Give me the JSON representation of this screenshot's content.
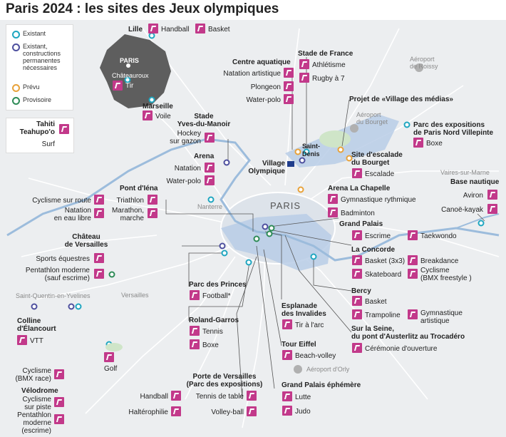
{
  "title": "Paris 2024 : les sites des Jeux olympiques",
  "colors": {
    "existant": "#1fa6c0",
    "constructions": "#4d4f9e",
    "prevu": "#e8a23a",
    "provisoire": "#2e8b57",
    "icon": "#c2398a",
    "zone": "#b8cde6"
  },
  "legend": {
    "items": [
      {
        "label": "Existant",
        "color": "#1fa6c0"
      },
      {
        "label": "Existant,\nconstructions\npermanentes\nnécessaires",
        "color": "#4d4f9e"
      },
      {
        "label": "Prévu",
        "color": "#e8a23a"
      },
      {
        "label": "Provisoire",
        "color": "#2e8b57"
      }
    ]
  },
  "inset": {
    "paris": "PARIS",
    "chateauroux": "Châteauroux",
    "tir": "Tir"
  },
  "tahiti": {
    "name": "Tahiti\nTeahupo'o",
    "sport": "Surf"
  },
  "places": {
    "lille": "Lille",
    "marseille": "Marseille",
    "nanterre": "Nanterre",
    "versailles": "Versailles",
    "sqy": "Saint-Quentin-en-Yvelines",
    "paris": "PARIS",
    "saint_denis": "Saint-\nDenis",
    "aeroport_roissy": "Aéroport\nde Roissy",
    "aeroport_bourget": "Aéroport\ndu Bourget",
    "aeroport_orly": "Aéroport d'Orly",
    "vaires": "Vaires-sur-Marne"
  },
  "labels": {
    "handball_lille": "Handball",
    "basket_lille": "Basket",
    "voile": "Voile",
    "centre_aquatique": "Centre aquatique",
    "natation_artistique": "Natation artistique",
    "plongeon": "Plongeon",
    "water_polo_ca": "Water-polo",
    "stade_de_france": "Stade de France",
    "athletisme": "Athlétisme",
    "rugby": "Rugby à 7",
    "stade_ymg": "Stade\nYves-du-Manoir",
    "hockey": "Hockey\nsur gazon",
    "arena": "Arena",
    "natation": "Natation",
    "water_polo_arena": "Water-polo",
    "village_olympique": "Village\nOlympique",
    "projet_village_medias": "Projet de «Village des médias»",
    "parc_expo_villepinte": "Parc des expositions\nde Paris Nord Villepinte",
    "boxe_villepinte": "Boxe",
    "escalade_site": "Site d'escalade\ndu Bourget",
    "escalade": "Escalade",
    "arena_chapelle": "Arena La Chapelle",
    "gym_rythmique": "Gymnastique rythmique",
    "badminton": "Badminton",
    "base_nautique": "Base nautique",
    "aviron": "Aviron",
    "canoe": "Canoë-kayak",
    "pont_iena": "Pont d'Iéna",
    "triathlon": "Triathlon",
    "marathon": "Marathon,\nmarche",
    "cyclisme_route": "Cyclisme sur route",
    "natation_eau_libre": "Natation\nen eau libre",
    "grand_palais": "Grand Palais",
    "escrime": "Escrime",
    "taekwondo": "Taekwondo",
    "concorde": "La Concorde",
    "basket3x3": "Basket (3x3)",
    "breakdance": "Breakdance",
    "skateboard": "Skateboard",
    "bmx_freestyle": "Cyclisme\n(BMX freestyle )",
    "chateau_versailles": "Château\nde Versailles",
    "equestres": "Sports équestres",
    "pentathlon_v": "Pentathlon moderne\n(sauf escrime)",
    "parc_princes": "Parc des Princes",
    "football": "Football*",
    "bercy": "Bercy",
    "basket_bercy": "Basket",
    "trampoline": "Trampoline",
    "gym_artistique": "Gymnastique\nartistique",
    "esplanade": "Esplanade\ndes Invalides",
    "tir_arc": "Tir à l'arc",
    "seine": "Sur la Seine,\ndu pont d'Austerlitz au Trocadéro",
    "ceremonie": "Cérémonie d'ouverture",
    "roland_garros": "Roland-Garros",
    "tennis": "Tennis",
    "boxe_rg": "Boxe",
    "tour_eiffel": "Tour Eiffel",
    "beach_volley": "Beach-volley",
    "colline_elancourt": "Colline\nd'Élancourt",
    "vtt": "VTT",
    "golf": "Golf",
    "bmx_race": "Cyclisme\n(BMX race)",
    "velodrome": "Vélodrome",
    "cyclisme_piste": "Cyclisme\nsur piste",
    "pentathlon_sqy": "Pentathlon\nmoderne\n(escrime)",
    "porte_versailles": "Porte de Versailles\n(Parc des expositions)",
    "handball_pv": "Handball",
    "tennis_table": "Tennis de table",
    "halterophilie": "Haltérophilie",
    "volley": "Volley-ball",
    "grand_palais_eph": "Grand Palais éphémère",
    "lutte": "Lutte",
    "judo": "Judo"
  }
}
